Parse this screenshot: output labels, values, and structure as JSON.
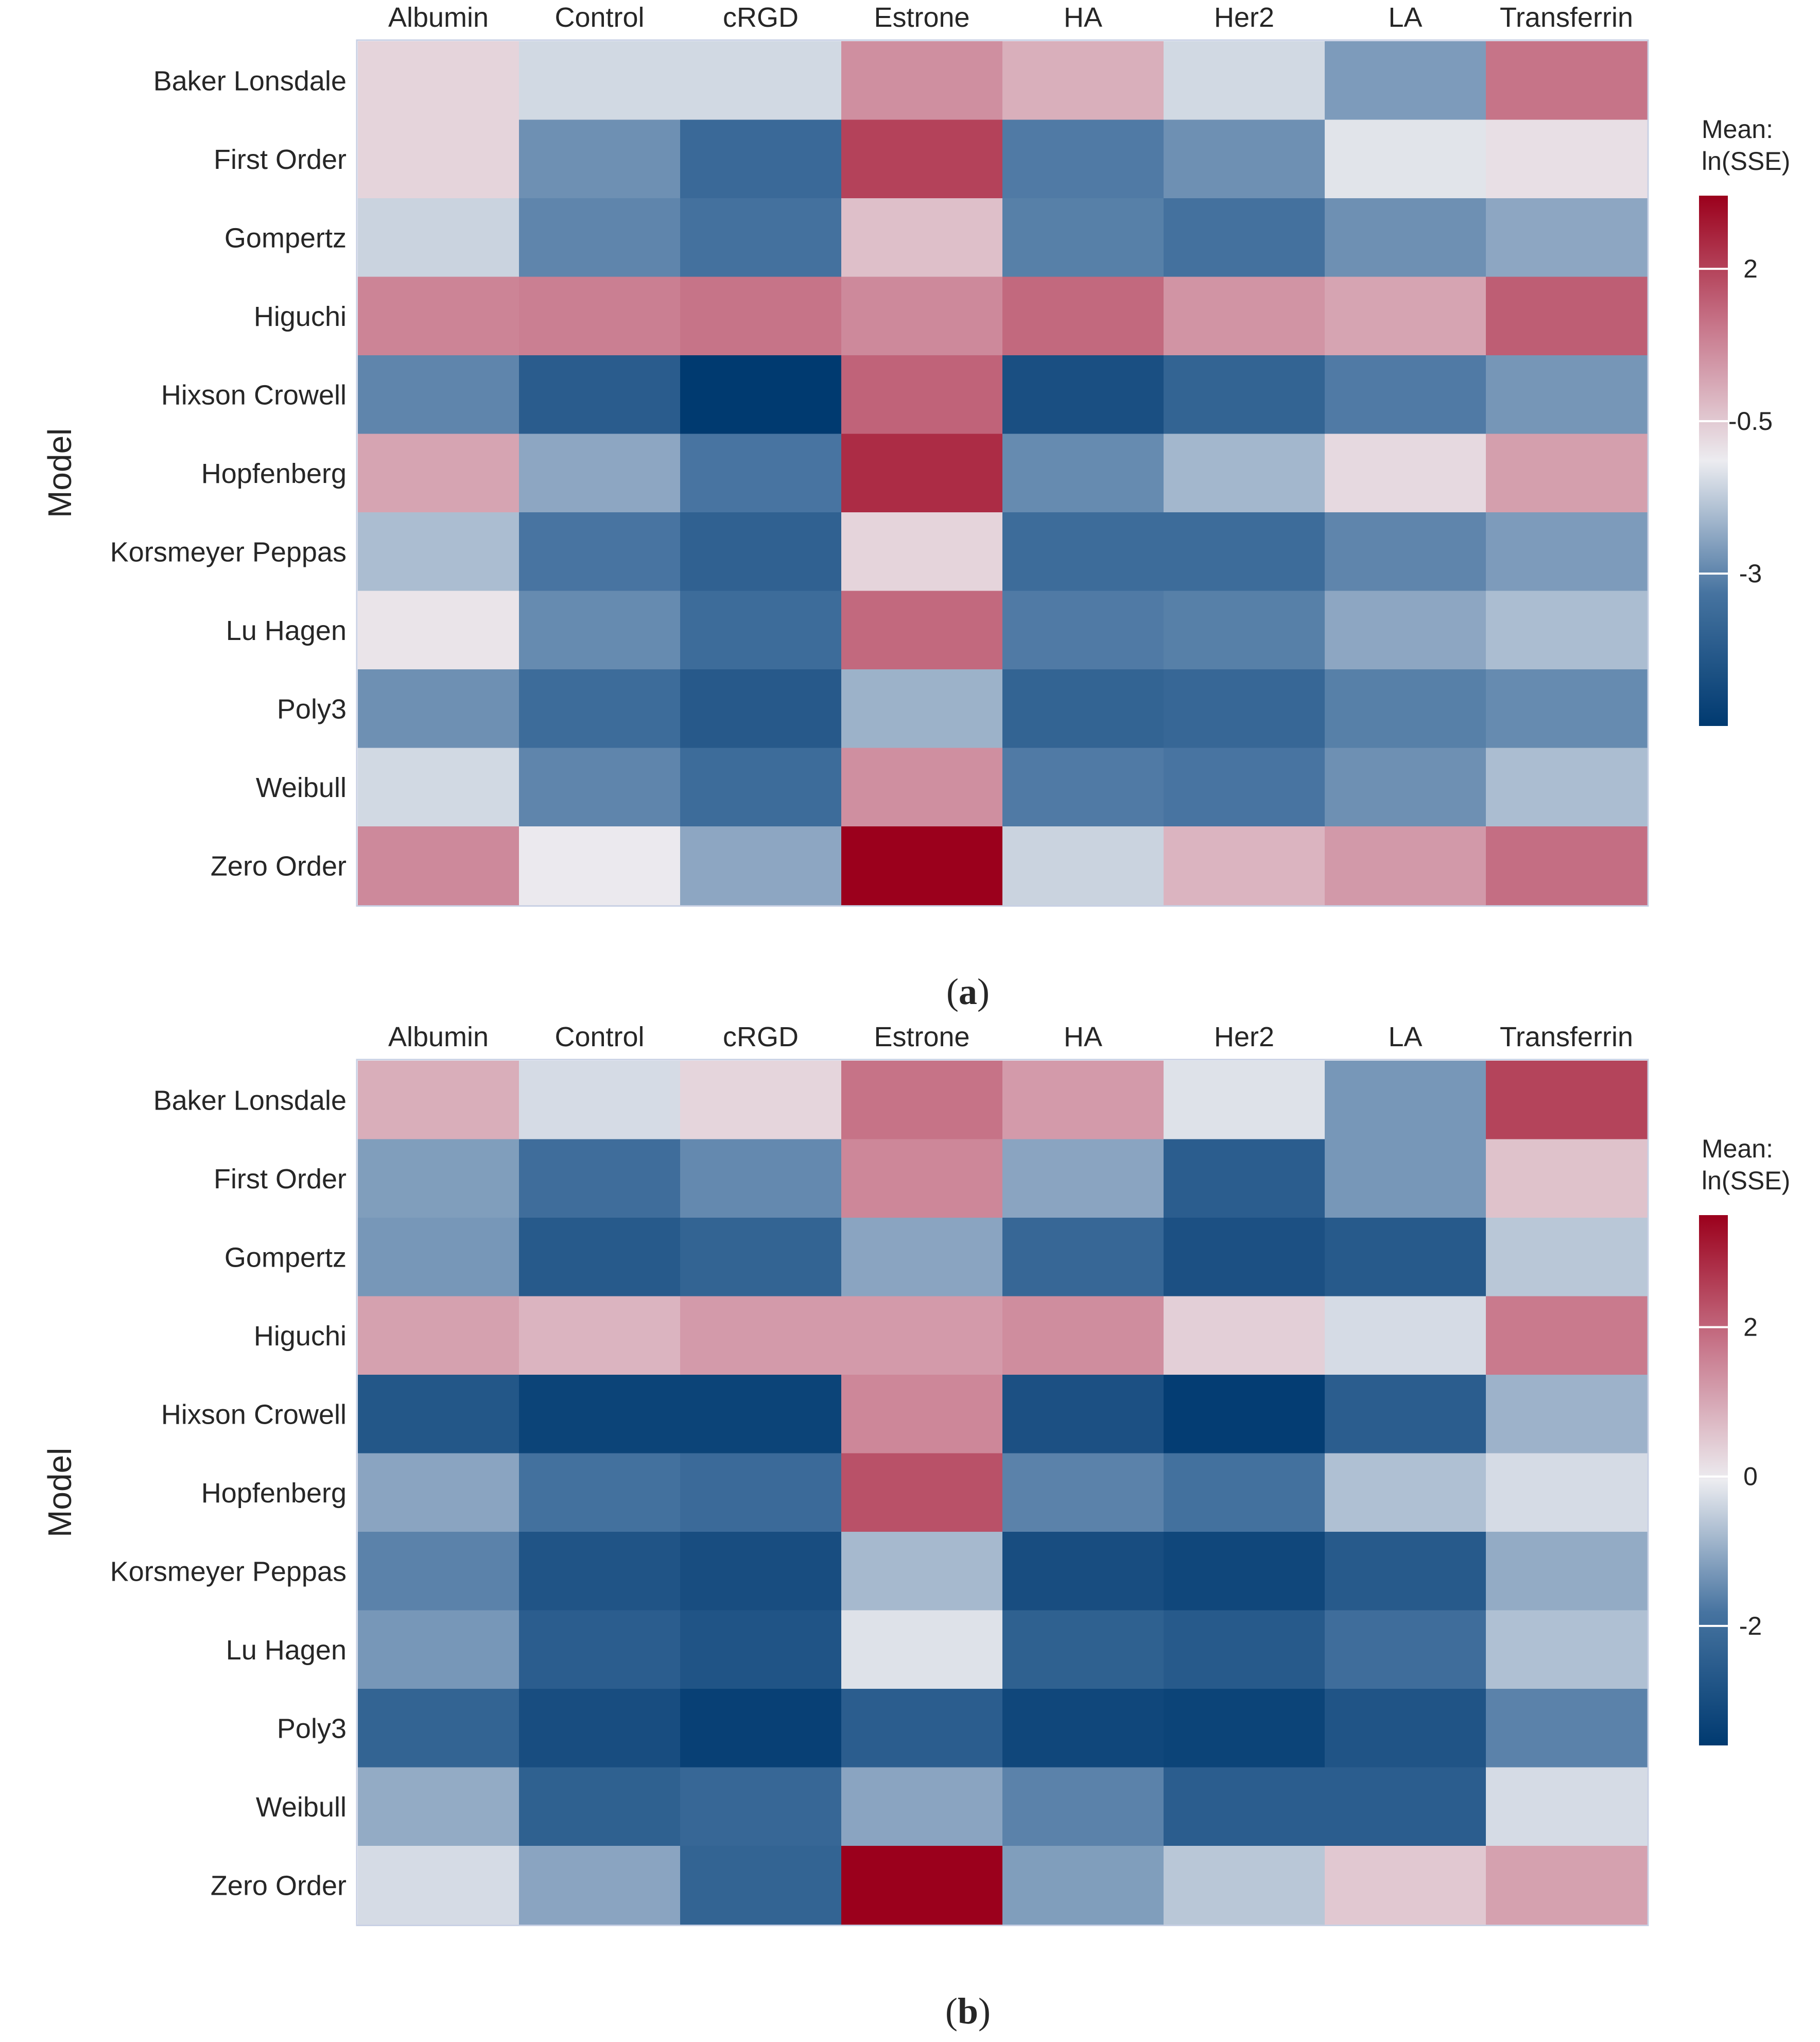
{
  "chart_data": [
    {
      "type": "heatmap",
      "panel_label": "a",
      "title": "",
      "xlabel": "",
      "ylabel": "Model",
      "x_categories": [
        "Albumin",
        "Control",
        "cRGD",
        "Estrone",
        "HA",
        "Her2",
        "LA",
        "Transferrin"
      ],
      "y_categories": [
        "Baker Lonsdale",
        "First Order",
        "Gompertz",
        "Higuchi",
        "Hixson Crowell",
        "Hopfenberg",
        "Korsmeyer Peppas",
        "Lu Hagen",
        "Poly3",
        "Weibull",
        "Zero Order"
      ],
      "values": [
        [
          -0.7,
          -1.5,
          -1.5,
          0.6,
          0.0,
          -1.5,
          -2.6,
          1.1
        ],
        [
          -0.7,
          -2.8,
          -3.7,
          2.0,
          -3.2,
          -2.8,
          -1.3,
          -0.9
        ],
        [
          -1.6,
          -3.0,
          -3.4,
          -0.3,
          -3.1,
          -3.4,
          -2.8,
          -2.4
        ],
        [
          0.8,
          0.9,
          1.1,
          0.7,
          1.3,
          0.5,
          0.2,
          1.5
        ],
        [
          -3.0,
          -4.2,
          -5.5,
          1.4,
          -4.7,
          -3.9,
          -3.2,
          -2.7
        ],
        [
          0.2,
          -2.4,
          -3.3,
          2.4,
          -2.9,
          -2.1,
          -0.8,
          0.3
        ],
        [
          -2.0,
          -3.3,
          -4.0,
          -0.7,
          -3.6,
          -3.6,
          -3.0,
          -2.6
        ],
        [
          -1.0,
          -2.9,
          -3.6,
          1.3,
          -3.2,
          -3.1,
          -2.4,
          -2.0
        ],
        [
          -2.8,
          -3.6,
          -4.3,
          -2.2,
          -3.9,
          -3.8,
          -3.1,
          -2.9
        ],
        [
          -1.5,
          -3.0,
          -3.6,
          0.6,
          -3.2,
          -3.3,
          -2.8,
          -2.0
        ],
        [
          0.7,
          -1.1,
          -2.4,
          3.2,
          -1.6,
          -0.1,
          0.4,
          1.2
        ]
      ],
      "colorbar": {
        "title_line1": "Mean:",
        "title_line2": "ln(SSE)",
        "min": -5.5,
        "max": 3.2,
        "ticks": [
          2,
          -0.5,
          -3
        ],
        "tick_labels": [
          "2",
          "-0.5",
          "-3"
        ]
      }
    },
    {
      "type": "heatmap",
      "panel_label": "b",
      "title": "",
      "xlabel": "",
      "ylabel": "Model",
      "x_categories": [
        "Albumin",
        "Control",
        "cRGD",
        "Estrone",
        "HA",
        "Her2",
        "LA",
        "Transferrin"
      ],
      "y_categories": [
        "Baker Lonsdale",
        "First Order",
        "Gompertz",
        "Higuchi",
        "Hixson Crowell",
        "Hopfenberg",
        "Korsmeyer Peppas",
        "Lu Hagen",
        "Poly3",
        "Weibull",
        "Zero Order"
      ],
      "values": [
        [
          0.9,
          -0.3,
          0.3,
          1.8,
          1.2,
          -0.2,
          -1.3,
          2.5
        ],
        [
          -1.2,
          -2.0,
          -1.5,
          1.5,
          -1.1,
          -2.5,
          -1.3,
          0.6
        ],
        [
          -1.3,
          -2.6,
          -2.3,
          -1.1,
          -2.2,
          -2.9,
          -2.6,
          -0.6
        ],
        [
          1.1,
          0.8,
          1.2,
          1.2,
          1.4,
          0.4,
          -0.3,
          1.7
        ],
        [
          -2.7,
          -3.3,
          -3.3,
          1.5,
          -2.9,
          -3.5,
          -2.5,
          -0.9
        ],
        [
          -1.1,
          -1.9,
          -2.1,
          2.3,
          -1.6,
          -1.9,
          -0.7,
          -0.3
        ],
        [
          -1.6,
          -2.8,
          -3.0,
          -0.8,
          -3.0,
          -3.2,
          -2.6,
          -1.0
        ],
        [
          -1.3,
          -2.5,
          -2.8,
          -0.2,
          -2.4,
          -2.6,
          -2.0,
          -0.7
        ],
        [
          -2.3,
          -3.0,
          -3.4,
          -2.5,
          -3.2,
          -3.3,
          -2.8,
          -1.6
        ],
        [
          -1.0,
          -2.4,
          -2.2,
          -1.1,
          -1.6,
          -2.5,
          -2.5,
          -0.3
        ],
        [
          -0.3,
          -1.1,
          -2.3,
          3.5,
          -1.2,
          -0.6,
          0.5,
          1.1
        ]
      ],
      "colorbar": {
        "title_line1": "Mean:",
        "title_line2": "ln(SSE)",
        "min": -3.6,
        "max": 3.5,
        "ticks": [
          2,
          0,
          -2
        ],
        "tick_labels": [
          "2",
          "0",
          "-2"
        ]
      }
    }
  ]
}
